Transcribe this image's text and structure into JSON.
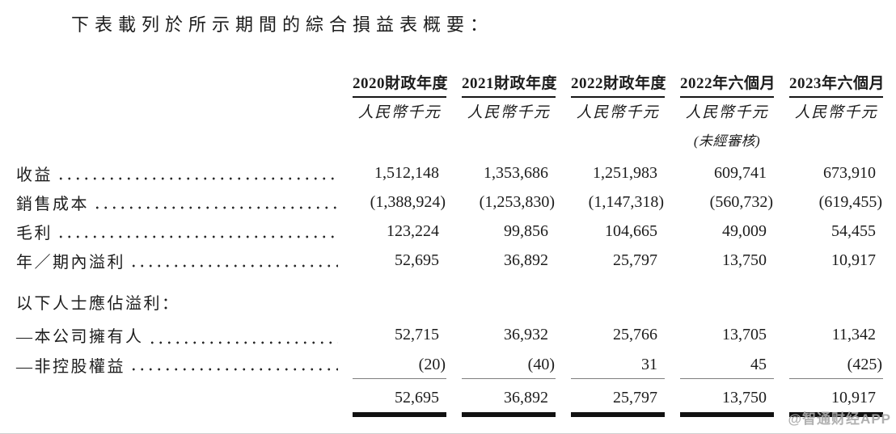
{
  "title": "下表載列於所示期間的綜合損益表概要：",
  "watermark": "@智通财经APP",
  "colors": {
    "text": "#1c1c1c",
    "rule": "#111111",
    "light_rule": "#7e7e7e",
    "watermark": "#a8a8a8",
    "background": "#ffffff"
  },
  "table": {
    "columns": [
      {
        "period": "2020財政年度",
        "unit": "人民幣千元",
        "note": ""
      },
      {
        "period": "2021財政年度",
        "unit": "人民幣千元",
        "note": ""
      },
      {
        "period": "2022財政年度",
        "unit": "人民幣千元",
        "note": ""
      },
      {
        "period": "2022年六個月",
        "unit": "人民幣千元",
        "note": "(未經審核)"
      },
      {
        "period": "2023年六個月",
        "unit": "人民幣千元",
        "note": ""
      }
    ],
    "rows": [
      {
        "label": "收益",
        "values": [
          "1,512,148",
          "1,353,686",
          "1,251,983",
          "609,741",
          "673,910"
        ]
      },
      {
        "label": "銷售成本",
        "values": [
          "(1,388,924)",
          "(1,253,830)",
          "(1,147,318)",
          "(560,732)",
          "(619,455)"
        ]
      },
      {
        "label": "毛利",
        "values": [
          "123,224",
          "99,856",
          "104,665",
          "49,009",
          "54,455"
        ]
      },
      {
        "label": "年／期內溢利",
        "values": [
          "52,695",
          "36,892",
          "25,797",
          "13,750",
          "10,917"
        ]
      },
      {
        "label": "以下人士應佔溢利：",
        "values": [
          "",
          "",
          "",
          "",
          ""
        ]
      },
      {
        "label": "—本公司擁有人",
        "values": [
          "52,715",
          "36,932",
          "25,766",
          "13,705",
          "11,342"
        ]
      },
      {
        "label": "—非控股權益",
        "values": [
          "(20)",
          "(40)",
          "31",
          "45",
          "(425)"
        ]
      },
      {
        "label": "",
        "values": [
          "52,695",
          "36,892",
          "25,797",
          "13,750",
          "10,917"
        ]
      }
    ]
  }
}
